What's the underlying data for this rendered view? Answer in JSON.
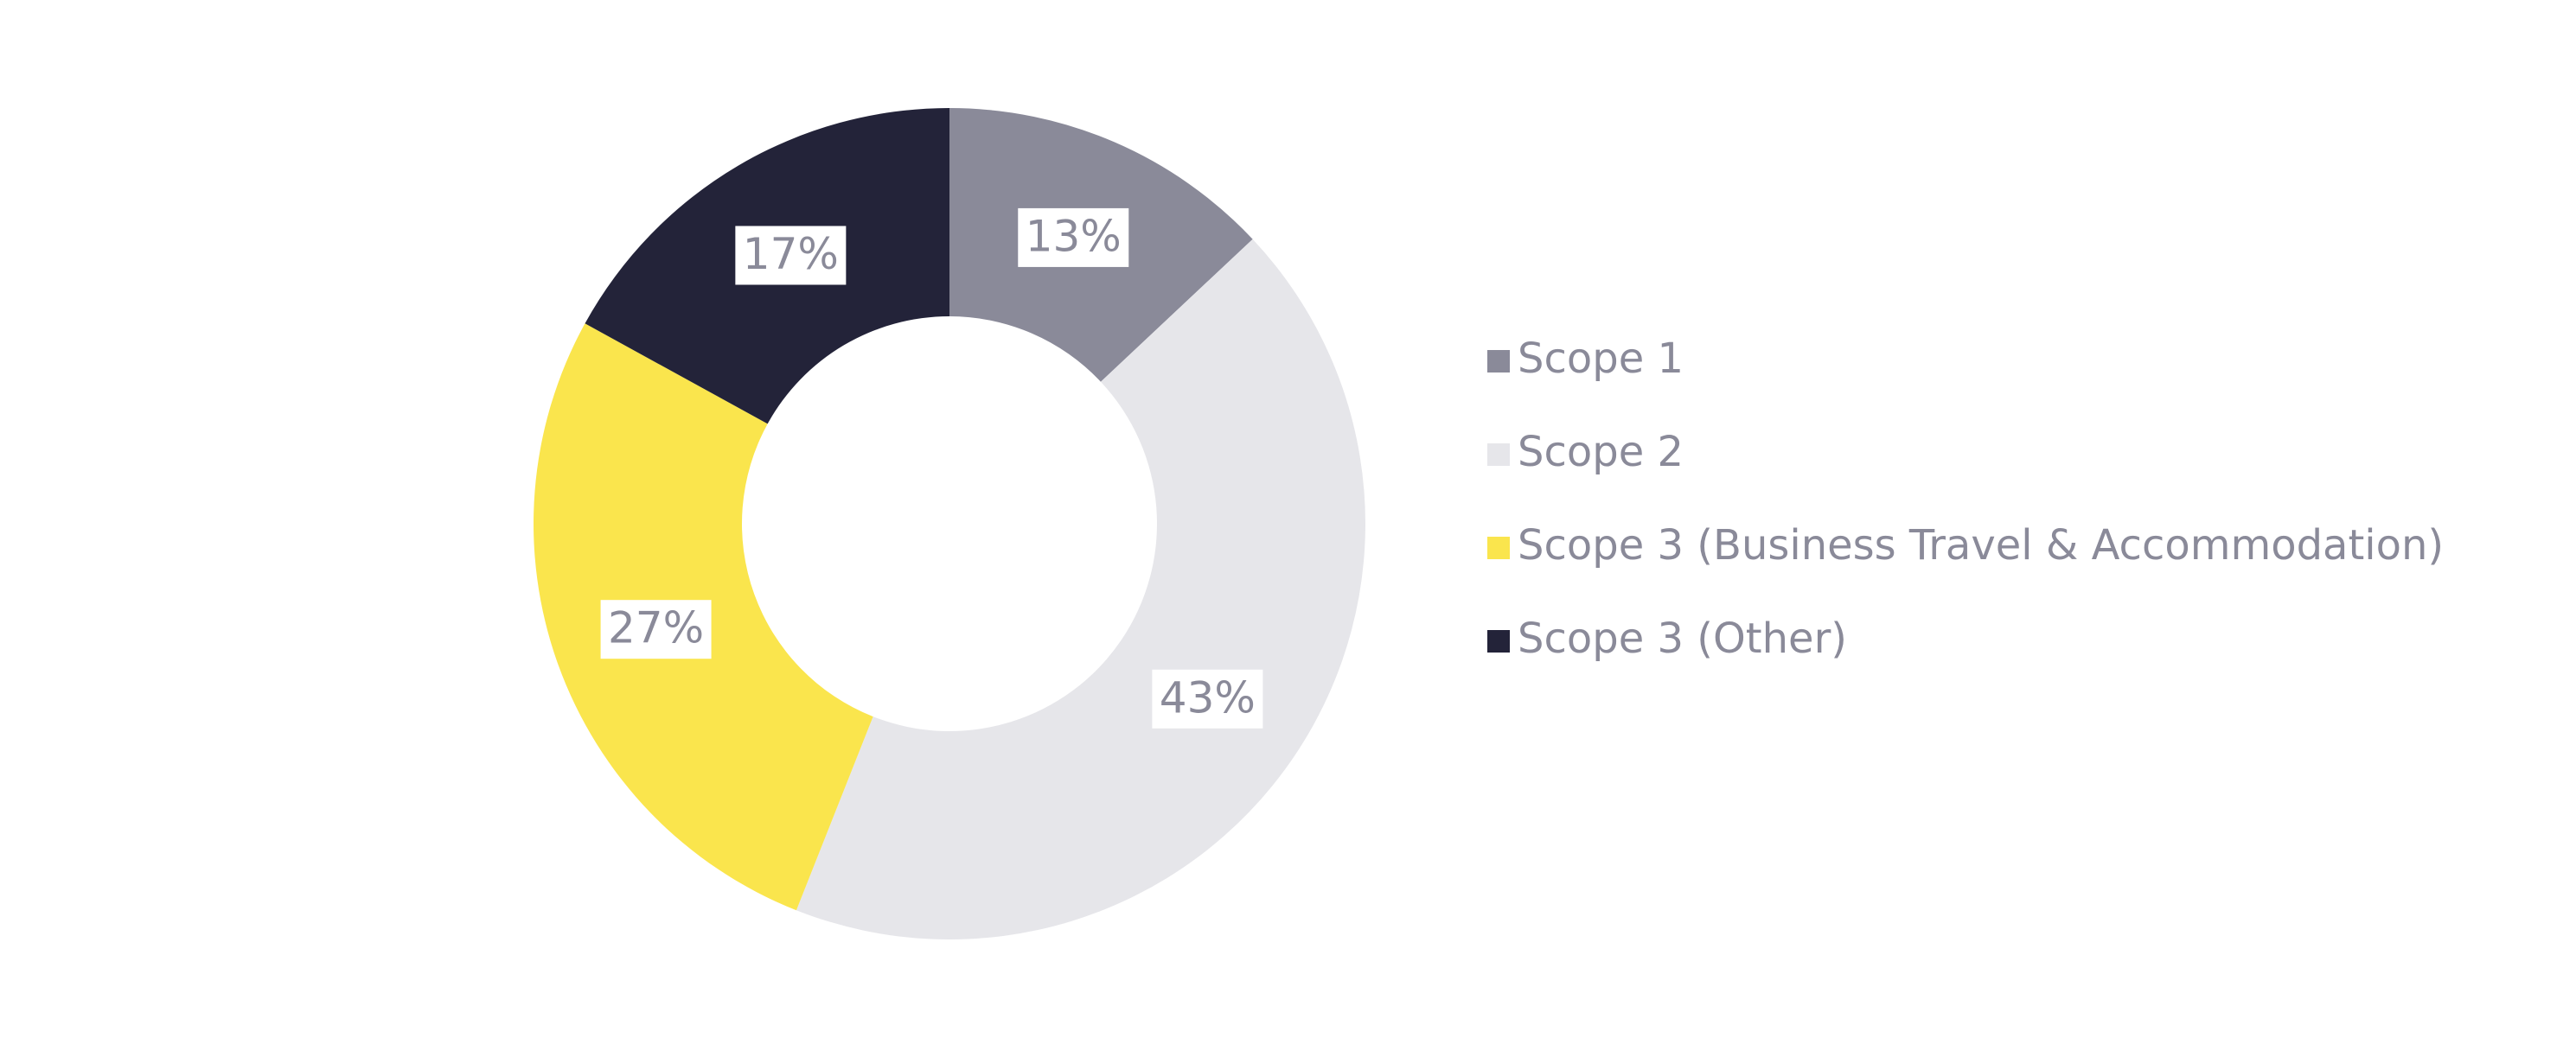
{
  "chart_data": {
    "type": "donut",
    "categories": [
      "Scope 1",
      "Scope 2",
      "Scope 3 (Business Travel & Accommodation)",
      "Scope 3 (Other)"
    ],
    "values": [
      13,
      43,
      27,
      17
    ],
    "value_labels": [
      "13%",
      "43%",
      "27%",
      "17%"
    ],
    "colors": [
      "#8a8a99",
      "#e6e6ea",
      "#fae54d",
      "#232339"
    ],
    "legend": "right"
  }
}
